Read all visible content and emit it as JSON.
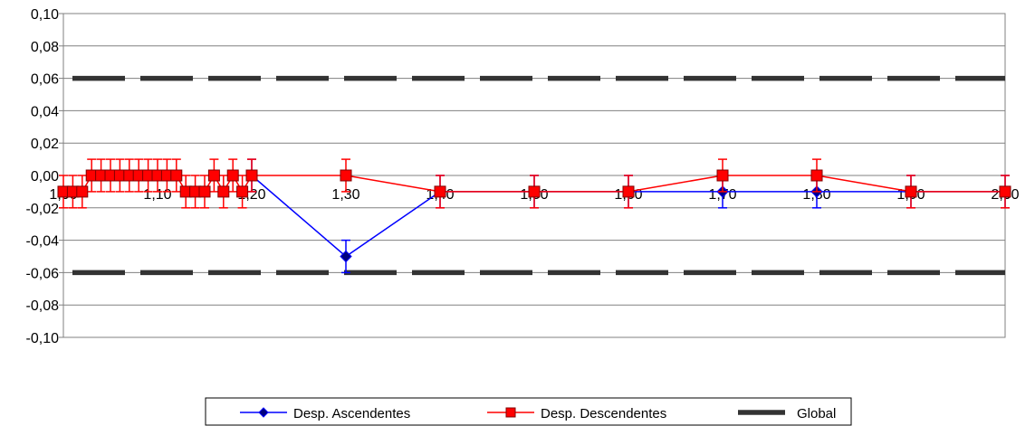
{
  "chart_data": {
    "type": "line",
    "title": "",
    "xlabel": "",
    "ylabel": "",
    "ylim": [
      -0.1,
      0.1
    ],
    "xlim": [
      1.0,
      2.0
    ],
    "y_ticks": [
      "0,10",
      "0,08",
      "0,06",
      "0,04",
      "0,02",
      "0,00",
      "-0,02",
      "-0,04",
      "-0,06",
      "-0,08",
      "-0,10"
    ],
    "y_tick_values": [
      0.1,
      0.08,
      0.06,
      0.04,
      0.02,
      0.0,
      -0.02,
      -0.04,
      -0.06,
      -0.08,
      -0.1
    ],
    "x_ticks": [
      "1,00",
      "1,10",
      "1,20",
      "1,30",
      "1,40",
      "1,50",
      "1,60",
      "1,70",
      "1,80",
      "1,90",
      "2,00"
    ],
    "x_tick_values": [
      1.0,
      1.1,
      1.2,
      1.3,
      1.4,
      1.5,
      1.6,
      1.7,
      1.8,
      1.9,
      2.0
    ],
    "grid": "horizontal",
    "legend_position": "bottom",
    "series": [
      {
        "name": "Desp. Ascendentes",
        "color": "#0000ff",
        "marker": "diamond",
        "error": 0.01,
        "x": [
          1.2,
          1.3,
          1.4,
          1.5,
          1.6,
          1.7,
          1.8,
          1.9,
          2.0
        ],
        "y": [
          0.0,
          -0.05,
          -0.01,
          -0.01,
          -0.01,
          -0.01,
          -0.01,
          -0.01,
          -0.01
        ]
      },
      {
        "name": "Desp. Descendentes",
        "color": "#ff0000",
        "marker": "square",
        "error": 0.01,
        "x": [
          1.0,
          1.01,
          1.02,
          1.03,
          1.04,
          1.05,
          1.06,
          1.07,
          1.08,
          1.09,
          1.1,
          1.11,
          1.12,
          1.13,
          1.14,
          1.15,
          1.16,
          1.17,
          1.18,
          1.19,
          1.2,
          1.3,
          1.4,
          1.5,
          1.6,
          1.7,
          1.8,
          1.9,
          2.0
        ],
        "y": [
          -0.01,
          -0.01,
          -0.01,
          0.0,
          0.0,
          0.0,
          0.0,
          0.0,
          0.0,
          0.0,
          0.0,
          0.0,
          0.0,
          -0.01,
          -0.01,
          -0.01,
          0.0,
          -0.01,
          0.0,
          -0.01,
          0.0,
          0.0,
          -0.01,
          -0.01,
          -0.01,
          0.0,
          0.0,
          -0.01,
          -0.01
        ]
      },
      {
        "name": "Global",
        "color": "#333333",
        "marker": "none",
        "style": "dashed",
        "levels": [
          0.06,
          -0.06
        ]
      }
    ]
  }
}
